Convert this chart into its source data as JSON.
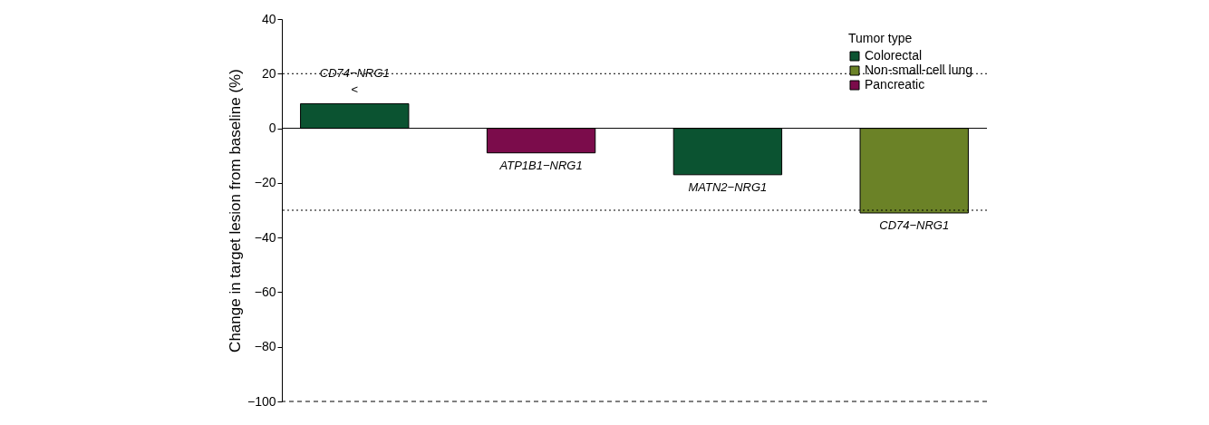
{
  "chart_data": {
    "type": "bar",
    "categories": [
      "CD74−NRG1",
      "ATP1B1−NRG1",
      "MATN2−NRG1",
      "CD74−NRG1"
    ],
    "series": [
      {
        "name": "Colorectal",
        "color": "#0b5331",
        "values": [
          9,
          null,
          -17,
          null
        ]
      },
      {
        "name": "Non-small-cell lung",
        "color": "#6b8227",
        "values": [
          null,
          null,
          null,
          -31
        ]
      },
      {
        "name": "Pancreatic",
        "color": "#7b0c4b",
        "values": [
          null,
          -9,
          null,
          null
        ]
      }
    ],
    "ylabel": "Change in target lesion from baseline (%)",
    "legend_title": "Tumor type",
    "legend": "top right",
    "ylim": [
      -100,
      40
    ],
    "yticks": [
      -100,
      -80,
      -60,
      -40,
      -20,
      0,
      20,
      40
    ],
    "tick_labels": "y",
    "grid": false,
    "annotations": [
      "<"
    ],
    "ref_lines": [
      {
        "axis": "y",
        "value": 0,
        "line_style": "solid"
      },
      {
        "axis": "y",
        "value": 20,
        "line_style": "dotted"
      },
      {
        "axis": "y",
        "value": -30,
        "line_style": "dotted"
      },
      {
        "axis": "y",
        "value": -100,
        "line_style": "dashed"
      }
    ]
  }
}
